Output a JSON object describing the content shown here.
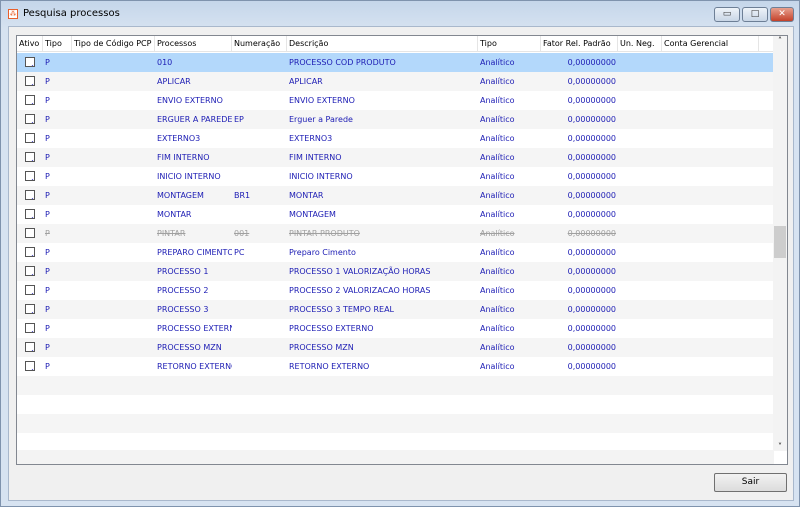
{
  "window": {
    "title": "Pesquisa processos",
    "minimize": "▭",
    "maximize": "□",
    "close": "✕"
  },
  "columns": [
    "Ativo",
    "Tipo",
    "Tipo de Código PCP",
    "Processos",
    "Numeração",
    "Descrição",
    "Tipo",
    "Fator Rel. Padrão",
    "Un. Neg.",
    "Conta Gerencial"
  ],
  "rows": [
    {
      "ativo": true,
      "tipo": "P",
      "tipo_cod": "",
      "processo": "010",
      "numeracao": "",
      "descricao": "PROCESSO COD PRODUTO",
      "tipo2": "Analítico",
      "fator": "0,00000000",
      "un_neg": "",
      "conta": ""
    },
    {
      "ativo": true,
      "tipo": "P",
      "tipo_cod": "",
      "processo": "APLICAR",
      "numeracao": "",
      "descricao": "APLICAR",
      "tipo2": "Analítico",
      "fator": "0,00000000",
      "un_neg": "",
      "conta": ""
    },
    {
      "ativo": true,
      "tipo": "P",
      "tipo_cod": "",
      "processo": "ENVIO EXTERNO",
      "numeracao": "",
      "descricao": "ENVIO EXTERNO",
      "tipo2": "Analítico",
      "fator": "0,00000000",
      "un_neg": "",
      "conta": ""
    },
    {
      "ativo": true,
      "tipo": "P",
      "tipo_cod": "",
      "processo": "ERGUER A PAREDE",
      "numeracao": "EP",
      "descricao": "Erguer a Parede",
      "tipo2": "Analítico",
      "fator": "0,00000000",
      "un_neg": "",
      "conta": ""
    },
    {
      "ativo": true,
      "tipo": "P",
      "tipo_cod": "",
      "processo": "EXTERNO3",
      "numeracao": "",
      "descricao": "EXTERNO3",
      "tipo2": "Analítico",
      "fator": "0,00000000",
      "un_neg": "",
      "conta": ""
    },
    {
      "ativo": true,
      "tipo": "P",
      "tipo_cod": "",
      "processo": "FIM INTERNO",
      "numeracao": "",
      "descricao": "FIM INTERNO",
      "tipo2": "Analítico",
      "fator": "0,00000000",
      "un_neg": "",
      "conta": ""
    },
    {
      "ativo": true,
      "tipo": "P",
      "tipo_cod": "",
      "processo": "INICIO INTERNO",
      "numeracao": "",
      "descricao": "INICIO INTERNO",
      "tipo2": "Analítico",
      "fator": "0,00000000",
      "un_neg": "",
      "conta": ""
    },
    {
      "ativo": true,
      "tipo": "P",
      "tipo_cod": "",
      "processo": "MONTAGEM",
      "numeracao": "BR1",
      "descricao": "MONTAR",
      "tipo2": "Analítico",
      "fator": "0,00000000",
      "un_neg": "",
      "conta": ""
    },
    {
      "ativo": true,
      "tipo": "P",
      "tipo_cod": "",
      "processo": "MONTAR",
      "numeracao": "",
      "descricao": "MONTAGEM",
      "tipo2": "Analítico",
      "fator": "0,00000000",
      "un_neg": "",
      "conta": ""
    },
    {
      "ativo": false,
      "tipo": "P",
      "tipo_cod": "",
      "processo": "PINTAR",
      "numeracao": "001",
      "descricao": "PINTAR PRODUTO",
      "tipo2": "Analítico",
      "fator": "0,00000000",
      "un_neg": "",
      "conta": ""
    },
    {
      "ativo": true,
      "tipo": "P",
      "tipo_cod": "",
      "processo": "PREPARO CIMENTO",
      "numeracao": "PC",
      "descricao": "Preparo Cimento",
      "tipo2": "Analítico",
      "fator": "0,00000000",
      "un_neg": "",
      "conta": ""
    },
    {
      "ativo": true,
      "tipo": "P",
      "tipo_cod": "",
      "processo": "PROCESSO 1",
      "numeracao": "",
      "descricao": "PROCESSO 1 VALORIZAÇÃO HORAS",
      "tipo2": "Analítico",
      "fator": "0,00000000",
      "un_neg": "",
      "conta": ""
    },
    {
      "ativo": true,
      "tipo": "P",
      "tipo_cod": "",
      "processo": "PROCESSO 2",
      "numeracao": "",
      "descricao": "PROCESSO 2 VALORIZACAO HORAS",
      "tipo2": "Analítico",
      "fator": "0,00000000",
      "un_neg": "",
      "conta": ""
    },
    {
      "ativo": true,
      "tipo": "P",
      "tipo_cod": "",
      "processo": "PROCESSO 3",
      "numeracao": "",
      "descricao": "PROCESSO 3 TEMPO REAL",
      "tipo2": "Analítico",
      "fator": "0,00000000",
      "un_neg": "",
      "conta": ""
    },
    {
      "ativo": true,
      "tipo": "P",
      "tipo_cod": "",
      "processo": "PROCESSO EXTERNO",
      "numeracao": "",
      "descricao": "PROCESSO EXTERNO",
      "tipo2": "Analítico",
      "fator": "0,00000000",
      "un_neg": "",
      "conta": ""
    },
    {
      "ativo": true,
      "tipo": "P",
      "tipo_cod": "",
      "processo": "PROCESSO MZN",
      "numeracao": "",
      "descricao": "PROCESSO MZN",
      "tipo2": "Analítico",
      "fator": "0,00000000",
      "un_neg": "",
      "conta": ""
    },
    {
      "ativo": true,
      "tipo": "P",
      "tipo_cod": "",
      "processo": "RETORNO EXTERNO",
      "numeracao": "",
      "descricao": "RETORNO EXTERNO",
      "tipo2": "Analítico",
      "fator": "0,00000000",
      "un_neg": "",
      "conta": ""
    }
  ],
  "selected_row": 0,
  "footer": {
    "exit_label": "Sair"
  },
  "colors": {
    "selection": "#b3d8fb",
    "text": "#1c1cb4"
  }
}
